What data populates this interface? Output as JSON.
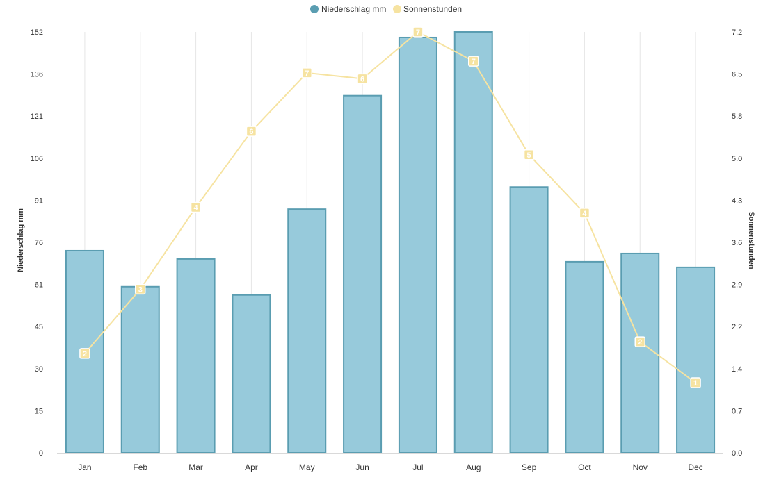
{
  "chart_data": {
    "type": "bar",
    "categories": [
      "Jan",
      "Feb",
      "Mar",
      "Apr",
      "May",
      "Jun",
      "Jul",
      "Aug",
      "Sep",
      "Oct",
      "Nov",
      "Dec"
    ],
    "series": [
      {
        "name": "Niederschlag mm",
        "kind": "bar",
        "axis": "left",
        "color": "#5a9db1",
        "fill": "#97cadb",
        "values": [
          73,
          60,
          70,
          57,
          88,
          129,
          150,
          152,
          96,
          69,
          72,
          67
        ]
      },
      {
        "name": "Sonnenstunden",
        "kind": "line",
        "axis": "right",
        "color": "#f6e3a1",
        "values": [
          1.7,
          2.8,
          4.2,
          5.5,
          6.5,
          6.4,
          7.2,
          6.7,
          5.1,
          4.1,
          1.9,
          1.2
        ],
        "labels": [
          "2",
          "3",
          "4",
          "6",
          "7",
          "6",
          "7",
          "7",
          "5",
          "4",
          "2",
          "1"
        ]
      }
    ],
    "yleft": {
      "label": "Niederschlag mm",
      "ticks": [
        "0",
        "15",
        "30",
        "45",
        "61",
        "76",
        "91",
        "106",
        "121",
        "136",
        "152"
      ],
      "ylim": [
        0,
        152
      ]
    },
    "yright": {
      "label": "Sonnenstunden",
      "ticks": [
        "0.0",
        "0.7",
        "1.4",
        "2.2",
        "2.9",
        "3.6",
        "4.3",
        "5.0",
        "5.8",
        "6.5",
        "7.2"
      ],
      "ylim": [
        0,
        7.2
      ]
    },
    "grid": "vertical",
    "legend": "top-center"
  }
}
